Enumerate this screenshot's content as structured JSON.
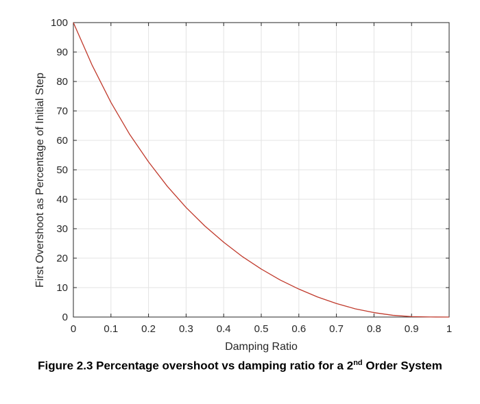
{
  "chart_data": {
    "type": "line",
    "xlabel": "Damping Ratio",
    "ylabel": "First Overshoot as Percentage of Initial Step",
    "xlim": [
      0,
      1
    ],
    "ylim": [
      0,
      100
    ],
    "grid": true,
    "x_ticks": [
      "0",
      "0.1",
      "0.2",
      "0.3",
      "0.4",
      "0.5",
      "0.6",
      "0.7",
      "0.8",
      "0.9",
      "1"
    ],
    "y_ticks": [
      "0",
      "10",
      "20",
      "30",
      "40",
      "50",
      "60",
      "70",
      "80",
      "90",
      "100"
    ],
    "series": [
      {
        "color": "#c0392b",
        "x": [
          0,
          0.05,
          0.1,
          0.15,
          0.2,
          0.25,
          0.3,
          0.35,
          0.4,
          0.45,
          0.5,
          0.55,
          0.6,
          0.65,
          0.7,
          0.75,
          0.8,
          0.85,
          0.9,
          0.95,
          1.0
        ],
        "y": [
          100,
          85.5,
          72.9,
          62.0,
          52.7,
          44.4,
          37.2,
          30.9,
          25.4,
          20.5,
          16.3,
          12.6,
          9.5,
          6.8,
          4.6,
          2.8,
          1.5,
          0.6,
          0.15,
          0.02,
          0
        ]
      }
    ]
  },
  "caption": {
    "prefix": "Figure 2.3 Percentage overshoot vs damping ratio for a 2",
    "superscript": "nd",
    "suffix": " Order System"
  }
}
